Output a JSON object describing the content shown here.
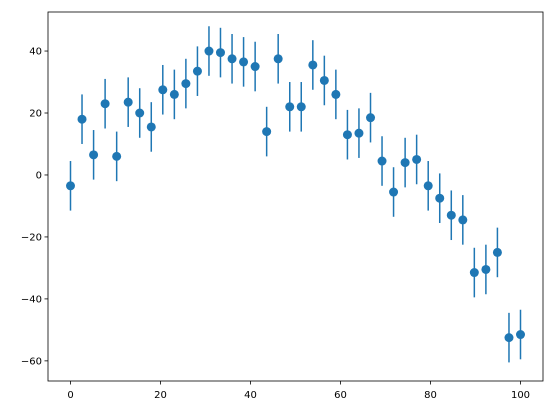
{
  "chart_data": {
    "type": "errorbar",
    "color": "#1f77b4",
    "x": [
      0,
      2.56,
      5.13,
      7.69,
      10.26,
      12.82,
      15.38,
      17.95,
      20.51,
      23.08,
      25.64,
      28.21,
      30.77,
      33.33,
      35.9,
      38.46,
      41.03,
      43.59,
      46.15,
      48.72,
      51.28,
      53.85,
      56.41,
      58.97,
      61.54,
      64.1,
      66.67,
      69.23,
      71.79,
      74.36,
      76.92,
      79.49,
      82.05,
      84.62,
      87.18,
      89.74,
      92.31,
      94.87,
      97.44,
      100
    ],
    "values": [
      -3.5,
      18,
      6.5,
      23,
      6,
      23.5,
      20,
      15.5,
      27.5,
      26,
      29.5,
      33.5,
      40,
      39.5,
      37.5,
      36.5,
      35,
      14,
      37.5,
      22,
      22,
      35.5,
      30.5,
      26,
      13,
      13.5,
      18.5,
      4.5,
      -5.5,
      4,
      5,
      -3.5,
      -7.5,
      -13,
      -14.5,
      -31.5,
      -30.5,
      -25,
      -52.5,
      -51.5
    ],
    "errors": [
      8,
      8,
      8,
      8,
      8,
      8,
      8,
      8,
      8,
      8,
      8,
      8,
      8,
      8,
      8,
      8,
      8,
      8,
      8,
      8,
      8,
      8,
      8,
      8,
      8,
      8,
      8,
      8,
      8,
      8,
      8,
      8,
      8,
      8,
      8,
      8,
      8,
      8,
      8,
      8
    ],
    "xlim": [
      -5,
      105
    ],
    "xticks": [
      0,
      20,
      40,
      60,
      80,
      100
    ],
    "ylim": [
      -66.5,
      52.6
    ],
    "yticks": [
      {
        "value": -60,
        "label": "−60"
      },
      {
        "value": -40,
        "label": "−40"
      },
      {
        "value": -20,
        "label": "−20"
      },
      0,
      20,
      40
    ]
  }
}
